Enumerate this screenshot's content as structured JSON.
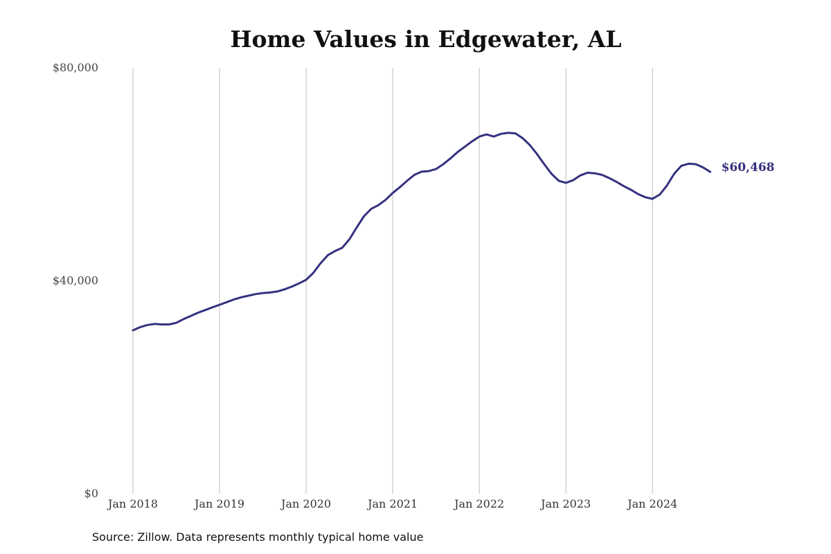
{
  "chart_data": {
    "type": "line",
    "title": "Home Values in Edgewater, AL",
    "source": "Source: Zillow. Data represents monthly typical home value",
    "xlabel": "",
    "ylabel": "",
    "ylim": [
      0,
      80000
    ],
    "y_ticks": [
      0,
      40000,
      80000
    ],
    "y_tick_labels": [
      "$0",
      "$40,000",
      "$80,000"
    ],
    "x_ticks": [
      "2018-01",
      "2019-01",
      "2020-01",
      "2021-01",
      "2022-01",
      "2023-01",
      "2024-01"
    ],
    "x_tick_labels": [
      "Jan 2018",
      "Jan 2019",
      "Jan 2020",
      "Jan 2021",
      "Jan 2022",
      "Jan 2023",
      "Jan 2024"
    ],
    "grid": "vertical",
    "line_color": "#34317f",
    "end_label": "$60,468",
    "series": [
      {
        "x": [
          "2018-01",
          "2018-02",
          "2018-03",
          "2018-04",
          "2018-05",
          "2018-06",
          "2018-07",
          "2018-08",
          "2018-09",
          "2018-10",
          "2018-11",
          "2018-12",
          "2019-01",
          "2019-02",
          "2019-03",
          "2019-04",
          "2019-05",
          "2019-06",
          "2019-07",
          "2019-08",
          "2019-09",
          "2019-10",
          "2019-11",
          "2019-12",
          "2020-01",
          "2020-02",
          "2020-03",
          "2020-04",
          "2020-05",
          "2020-06",
          "2020-07",
          "2020-08",
          "2020-09",
          "2020-10",
          "2020-11",
          "2020-12",
          "2021-01",
          "2021-02",
          "2021-03",
          "2021-04",
          "2021-05",
          "2021-06",
          "2021-07",
          "2021-08",
          "2021-09",
          "2021-10",
          "2021-11",
          "2021-12",
          "2022-01",
          "2022-02",
          "2022-03",
          "2022-04",
          "2022-05",
          "2022-06",
          "2022-07",
          "2022-08",
          "2022-09",
          "2022-10",
          "2022-11",
          "2022-12",
          "2023-01",
          "2023-02",
          "2023-03",
          "2023-04",
          "2023-05",
          "2023-06",
          "2023-07",
          "2023-08",
          "2023-09",
          "2023-10",
          "2023-11",
          "2023-12",
          "2024-01",
          "2024-02",
          "2024-03",
          "2024-04",
          "2024-05",
          "2024-06",
          "2024-07",
          "2024-08",
          "2024-09"
        ],
        "values": [
          30700,
          31300,
          31700,
          31900,
          31800,
          31800,
          32100,
          32800,
          33400,
          34000,
          34500,
          35000,
          35500,
          36000,
          36500,
          36900,
          37200,
          37500,
          37700,
          37800,
          38000,
          38400,
          38900,
          39500,
          40200,
          41500,
          43300,
          44800,
          45600,
          46200,
          47800,
          50000,
          52100,
          53500,
          54200,
          55200,
          56500,
          57600,
          58800,
          59900,
          60500,
          60600,
          61000,
          61900,
          63000,
          64200,
          65200,
          66200,
          67100,
          67500,
          67100,
          67600,
          67800,
          67700,
          66800,
          65500,
          63800,
          61900,
          60100,
          58800,
          58400,
          58900,
          59800,
          60300,
          60200,
          59900,
          59300,
          58600,
          57800,
          57100,
          56300,
          55700,
          55400,
          56200,
          57900,
          60100,
          61600,
          62000,
          61900,
          61300,
          60468
        ]
      }
    ]
  }
}
